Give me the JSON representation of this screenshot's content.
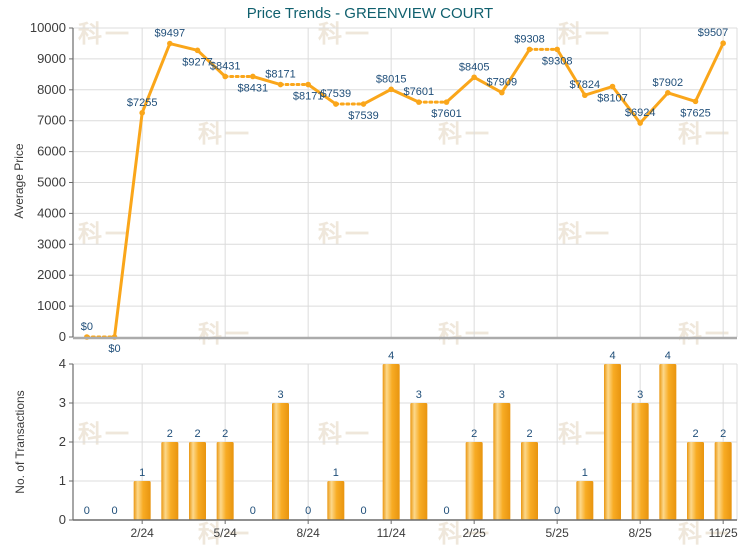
{
  "title": "Price Trends - GREENVIEW COURT",
  "watermark_text": "科一",
  "colors": {
    "accent_orange": "#FAA61A",
    "bar_gradient": [
      "#EA9712",
      "#FCD88B",
      "#F8AC24",
      "#E8940F"
    ],
    "data_label_navy": "#1F4E79",
    "title_teal": "#10606E",
    "axis_text_gray": "#3C3C3C",
    "axis_line_gray": "#6B6B6B",
    "baseline_gray": "#ABABAB",
    "grid_gray": "#DCDCDC",
    "watermark_tint": "#EFE7DB"
  },
  "x_axis": {
    "tick_labels": [
      "2/24",
      "5/24",
      "8/24",
      "11/24",
      "2/25",
      "5/25",
      "8/25",
      "11/25"
    ],
    "tick_month_indices": [
      2,
      5,
      8,
      11,
      14,
      17,
      20,
      23
    ]
  },
  "chart_data": [
    {
      "type": "line",
      "title": "Price Trends - GREENVIEW COURT",
      "ylabel": "Average Price",
      "xlabel": "",
      "ylim": [
        0,
        10000
      ],
      "ytick_step": 1000,
      "grid": true,
      "legend": false,
      "series": [
        {
          "name": "Average Price",
          "values": [
            0,
            0,
            7255,
            9497,
            9277,
            8431,
            8431,
            8171,
            8171,
            7539,
            7539,
            8015,
            7601,
            7601,
            8405,
            7909,
            9308,
            9308,
            7824,
            8107,
            6924,
            7902,
            7625,
            9507
          ],
          "labels": [
            "$0",
            "$0",
            "$7255",
            "$9497",
            "$9277",
            "$8431",
            "$8431",
            "$8171",
            "$8171",
            "$7539",
            "$7539",
            "$8015",
            "$7601",
            "$7601",
            "$8405",
            "$7909",
            "$9308",
            "$9308",
            "$7824",
            "$8107",
            "$6924",
            "$7902",
            "$7625",
            "$9507"
          ],
          "label_positions": [
            "above",
            "below",
            "above",
            "above",
            "below",
            "above",
            "below",
            "above",
            "below",
            "above",
            "below",
            "above",
            "above",
            "below",
            "above",
            "above",
            "above",
            "below",
            "above",
            "below",
            "above",
            "above",
            "below",
            "above"
          ],
          "dotted_segment_into_index": [
            1,
            6,
            8,
            10,
            13,
            17
          ]
        }
      ]
    },
    {
      "type": "bar",
      "ylabel": "No. of Transactions",
      "xlabel": "",
      "ylim": [
        0,
        4
      ],
      "ytick_step": 1,
      "grid": true,
      "legend": false,
      "values": [
        0,
        0,
        1,
        2,
        2,
        2,
        0,
        3,
        0,
        1,
        0,
        4,
        3,
        0,
        2,
        3,
        2,
        0,
        1,
        4,
        3,
        4,
        2,
        2
      ]
    }
  ]
}
